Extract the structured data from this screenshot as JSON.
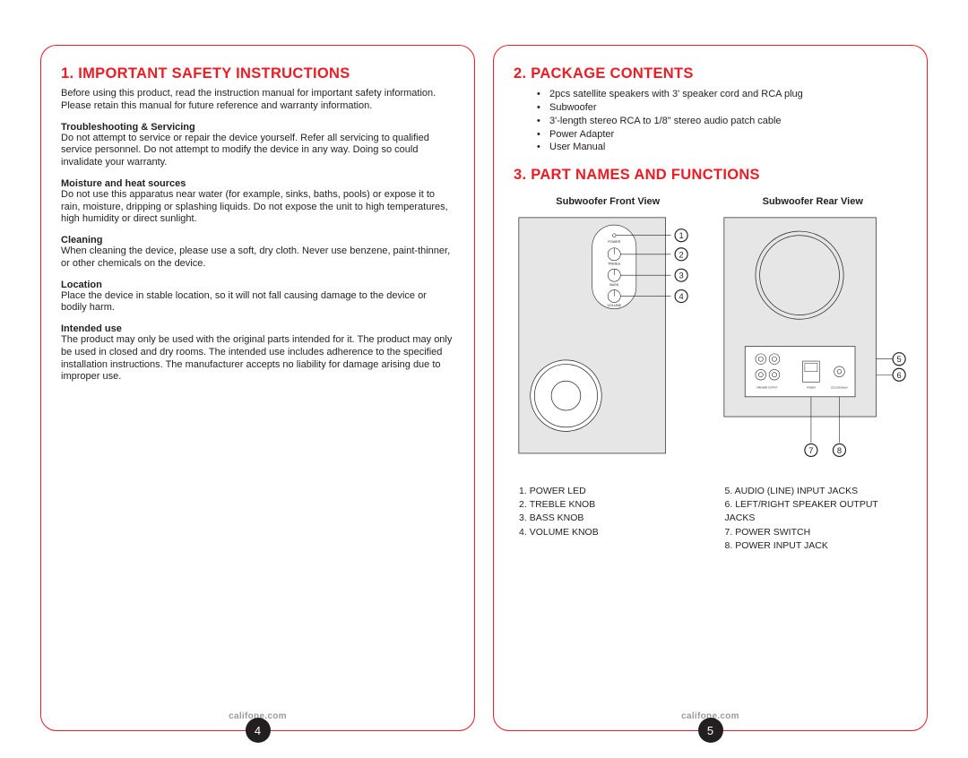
{
  "left": {
    "title": "1. IMPORTANT SAFETY INSTRUCTIONS",
    "intro": "Before using this product, read the instruction manual for important safety information. Please retain this manual for future reference and warranty information.",
    "sections": [
      {
        "heading": "Troubleshooting & Servicing",
        "body": "Do not attempt to service or repair the device yourself. Refer all servicing to qualified service personnel. Do not attempt to modify the device in any way. Doing so could invalidate your warranty."
      },
      {
        "heading": "Moisture and heat sources",
        "body": "Do not use this apparatus near water (for example, sinks, baths, pools) or expose it to rain, moisture, dripping or splashing liquids. Do not expose the unit to high temperatures, high humidity or direct sunlight."
      },
      {
        "heading": "Cleaning",
        "body": "When cleaning the device, please use a soft, dry cloth. Never use benzene, paint-thinner, or other chemicals on the device."
      },
      {
        "heading": "Location",
        "body": "Place the device in stable location, so it will not fall causing damage to the device or bodily harm."
      },
      {
        "heading": "Intended use",
        "body": "The product may only be used with the original parts intended for it.  The product may only be used in closed and dry rooms.  The intended use includes adherence to the specified installation instructions. The manufacturer accepts no liability for damage arising due to improper use."
      }
    ],
    "footer": "califone.com",
    "page_num": "4"
  },
  "right": {
    "title1": "2. PACKAGE CONTENTS",
    "contents": [
      "2pcs satellite speakers with 3' speaker cord and RCA plug",
      "Subwoofer",
      "3'-length stereo RCA to 1/8\" stereo audio patch cable",
      "Power Adapter",
      "User Manual"
    ],
    "title2": "3. PART NAMES AND FUNCTIONS",
    "front_label": "Subwoofer Front View",
    "rear_label": "Subwoofer Rear View",
    "parts_left": [
      "POWER LED",
      "TREBLE KNOB",
      "BASS KNOB",
      "VOLUME KNOB"
    ],
    "parts_right": [
      "AUDIO (LINE) INPUT JACKS",
      "LEFT/RIGHT SPEAKER OUTPUT JACKS",
      "POWER SWITCH",
      "POWER INPUT JACK"
    ],
    "footer": "califone.com",
    "page_num": "5",
    "colors": {
      "accent": "#ed1c24",
      "text": "#231f20",
      "footer": "#9b9b9b"
    },
    "knob_labels": [
      "POWER",
      "TREBLE",
      "BASS",
      "VOLUME"
    ],
    "rear_labels": {
      "speaker_out": "SPEAKER OUTPUT",
      "power": "POWER",
      "dc": "DC12V/1000mA"
    }
  }
}
